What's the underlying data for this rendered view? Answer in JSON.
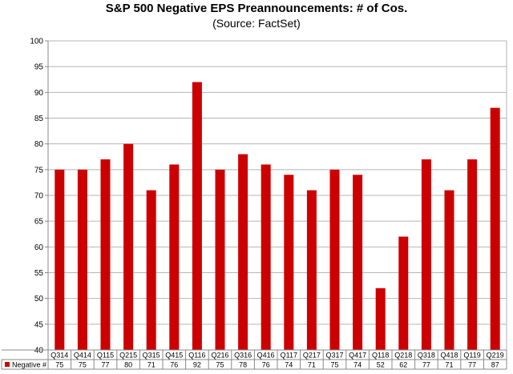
{
  "chart_data": {
    "type": "bar",
    "title": "S&P 500 Negative EPS Preannouncements: # of Cos.",
    "subtitle": "(Source: FactSet)",
    "categories": [
      "Q314",
      "Q414",
      "Q115",
      "Q215",
      "Q315",
      "Q415",
      "Q116",
      "Q216",
      "Q316",
      "Q416",
      "Q117",
      "Q217",
      "Q317",
      "Q417",
      "Q118",
      "Q218",
      "Q318",
      "Q418",
      "Q119",
      "Q219"
    ],
    "series": [
      {
        "name": "Negative #",
        "color": "#cc0000",
        "values": [
          75,
          75,
          77,
          80,
          71,
          76,
          92,
          75,
          78,
          76,
          74,
          71,
          75,
          74,
          52,
          62,
          77,
          71,
          77,
          87
        ]
      }
    ],
    "ylim": [
      40,
      100
    ],
    "yticks": [
      40,
      45,
      50,
      55,
      60,
      65,
      70,
      75,
      80,
      85,
      90,
      95,
      100
    ],
    "grid": true,
    "legend": "data-table-bottom",
    "xlabel": "",
    "ylabel": ""
  }
}
